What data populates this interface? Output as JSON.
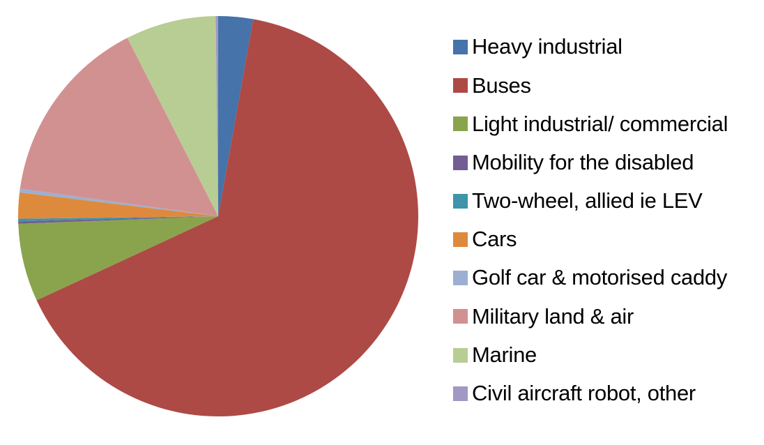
{
  "chart_data": {
    "type": "pie",
    "title": "",
    "unit": "percent",
    "start_angle_deg": 0,
    "direction": "clockwise",
    "legend_position": "right",
    "background_color": "#ffffff",
    "categories": [
      "Heavy industrial",
      "Buses",
      "Light industrial/ commercial",
      "Mobility for the disabled",
      "Two-wheel, allied ie LEV",
      "Cars",
      "Golf car & motorised caddy",
      "Military land & air",
      "Marine",
      "Civil aircraft robot, other"
    ],
    "values": [
      2.8,
      65.3,
      6.3,
      0.2,
      0.2,
      2.1,
      0.3,
      15.3,
      7.3,
      0.2
    ],
    "colors": [
      "#4573AA",
      "#AD4A46",
      "#8AA44E",
      "#735D92",
      "#3E94A8",
      "#DE8A3C",
      "#9CAFD3",
      "#D29191",
      "#B8CD94",
      "#A298C4"
    ]
  }
}
